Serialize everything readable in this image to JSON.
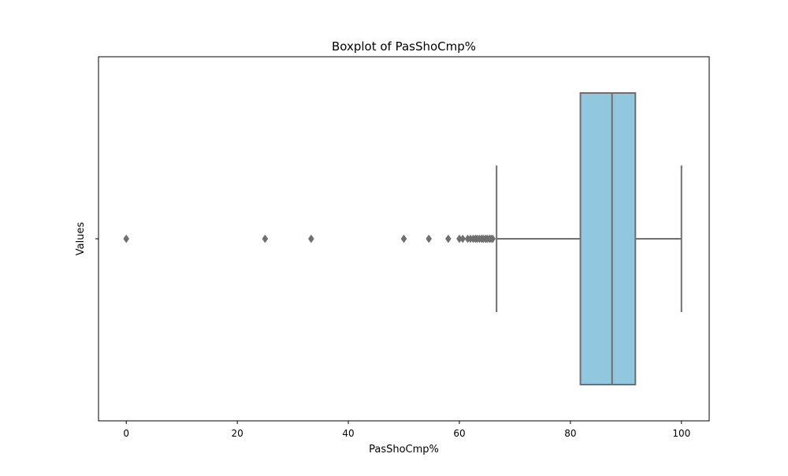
{
  "chart_data": {
    "type": "boxplot",
    "orientation": "horizontal",
    "title": "Boxplot of PasShoCmp%",
    "xlabel": "PasShoCmp%",
    "ylabel": "Values",
    "xlim": [
      -5,
      105
    ],
    "xticks": [
      0,
      20,
      40,
      60,
      80,
      100
    ],
    "grid": false,
    "box": {
      "q1": 81.8,
      "median": 87.5,
      "q3": 91.7,
      "whisker_low": 66.7,
      "whisker_high": 100
    },
    "outliers": [
      0,
      25,
      33.3,
      50,
      54.5,
      58,
      60,
      60.6,
      61.5,
      62,
      62.5,
      62.9,
      63.2,
      63.6,
      64,
      64.3,
      64.7,
      65,
      65.4,
      65.7,
      66
    ]
  },
  "colors": {
    "box_fill": "#92c8df",
    "line": "#6f6f6f",
    "axes": "#000000"
  }
}
